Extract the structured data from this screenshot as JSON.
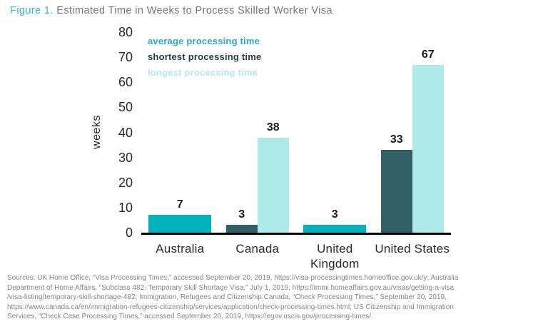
{
  "title": {
    "figure_label": "Figure 1.",
    "text": " Estimated Time in Weeks to Process Skilled Worker Visa"
  },
  "colors": {
    "figure_label_text": "#3cb7c5",
    "title_text": "#75777a",
    "axis_line": "#000000",
    "tick_text": "#2b2b2b",
    "value_label_text": "#1a1a1a",
    "x_label_text": "#2b2b2b",
    "y_axis_label_text": "#2b2b2b",
    "source_text": "#85878a"
  },
  "chart_data": {
    "type": "bar",
    "title": "Estimated Time in Weeks to Process Skilled Worker Visa",
    "xlabel": "",
    "ylabel": "weeks",
    "ylim": [
      0,
      80
    ],
    "yticks": [
      0,
      10,
      20,
      30,
      40,
      50,
      60,
      70,
      80
    ],
    "grid": false,
    "legend_position": "top-left-inside",
    "categories": [
      {
        "name": "Australia",
        "label_lines": [
          "Australia"
        ]
      },
      {
        "name": "Canada",
        "label_lines": [
          "Canada"
        ]
      },
      {
        "name": "United Kingdom",
        "label_lines": [
          "United",
          "Kingdom"
        ]
      },
      {
        "name": "United States",
        "label_lines": [
          "United States"
        ]
      }
    ],
    "series": [
      {
        "key": "average",
        "name": "average processing time",
        "bar_color": "#00b2bc",
        "legend_text_color": "#2aadb9",
        "values": [
          7,
          null,
          3,
          null
        ]
      },
      {
        "key": "shortest",
        "name": "shortest processing time",
        "bar_color": "#305f64",
        "legend_text_color": "#1f3e47",
        "values": [
          null,
          3,
          null,
          33
        ]
      },
      {
        "key": "longest",
        "name": "longest processing time",
        "bar_color": "#aeeae8",
        "legend_text_color": "#b7e9e9",
        "values": [
          null,
          38,
          null,
          67
        ]
      }
    ]
  },
  "sources": {
    "lines": [
      "Sources: UK Home Office, “Visa Processing Times,” accessed September 20, 2019, https://visa-processingtimes.homeoffice.gov.uk/y; Australia",
      "Department of Home Affairs, “Subclass 482: Temporary Skill Shortage Visa,” July 1, 2019, https://immi.homeaffairs.gov.au/visas/getting-a-visa",
      "/visa-listing/temporary-skill-shortage-482; Immigration, Refugees and Citizenship Canada, “Check Processing Times,” September 20, 2019,",
      "https://www.canada.ca/en/immigration-refugees-citizenship/services/application/check-processing-times.html; US Citizenship and Immigration",
      "Services, “Check Case Processing Times,” accessed September 20, 2019, https://egov.uscis.gov/processing-times/."
    ]
  }
}
